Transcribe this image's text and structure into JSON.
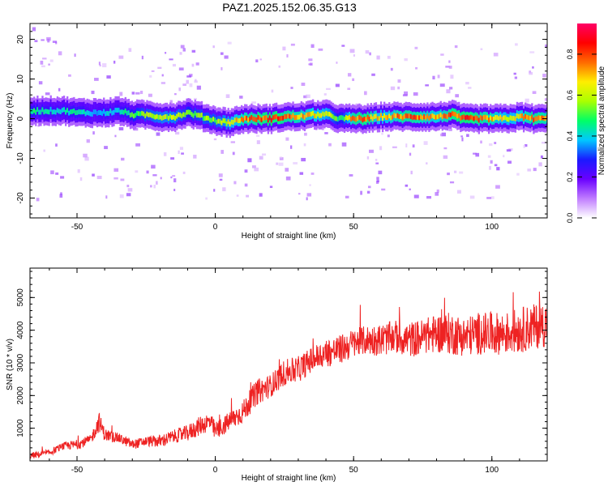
{
  "title": "PAZ1.2025.152.06.35.G13",
  "colorbar": {
    "label": "Normalized spectral amplitude",
    "ticks": [
      "0.0",
      "0.2",
      "0.4",
      "0.6",
      "0.8"
    ],
    "tick_values": [
      0.0,
      0.2,
      0.4,
      0.6,
      0.8
    ],
    "range": [
      0.0,
      0.95
    ],
    "colormap": [
      "#ffffff",
      "#c07cff",
      "#6a00ff",
      "#1a1aff",
      "#00c8ff",
      "#00ff66",
      "#aaff00",
      "#ffee00",
      "#ff6a00",
      "#ff0000",
      "#ff0066"
    ]
  },
  "chart_data": [
    {
      "type": "heatmap",
      "xlabel": "Height of straight line (km)",
      "ylabel": "Frequency (Hz)",
      "xlim": [
        -67,
        120
      ],
      "ylim": [
        -25,
        24
      ],
      "xticks": [
        -50,
        0,
        50,
        100
      ],
      "yticks": [
        -20,
        -10,
        0,
        10,
        20
      ],
      "x": [
        -65,
        -60,
        -55,
        -50,
        -45,
        -40,
        -35,
        -30,
        -25,
        -20,
        -15,
        -10,
        -5,
        0,
        5,
        10,
        15,
        20,
        25,
        30,
        35,
        40,
        45,
        50,
        55,
        60,
        65,
        70,
        75,
        80,
        85,
        90,
        95,
        100,
        105,
        110,
        115,
        120
      ],
      "ridge_frequency": [
        2,
        2,
        2,
        1.5,
        1.5,
        1.5,
        2,
        1,
        1,
        0.5,
        0.5,
        1.5,
        0.5,
        -0.5,
        -1,
        0,
        0,
        0,
        0.5,
        0.5,
        1,
        1,
        0,
        0,
        0,
        0.5,
        0.5,
        0.5,
        0.5,
        0.5,
        1,
        0,
        0,
        0,
        0,
        0.5,
        0,
        0
      ],
      "ridge_amplitude": [
        0.5,
        0.45,
        0.45,
        0.5,
        0.4,
        0.45,
        0.45,
        0.55,
        0.6,
        0.65,
        0.65,
        0.55,
        0.6,
        0.6,
        0.7,
        0.8,
        0.85,
        0.9,
        0.85,
        0.8,
        0.75,
        0.7,
        0.5,
        0.85,
        0.85,
        0.7,
        0.8,
        0.85,
        0.8,
        0.75,
        0.85,
        0.9,
        0.85,
        0.8,
        0.7,
        0.75,
        0.85,
        0.8
      ]
    },
    {
      "type": "line",
      "xlabel": "Height of straight line (km)",
      "ylabel": "SNR (10 * v/v)",
      "xlim": [
        -67,
        120
      ],
      "ylim": [
        0,
        5900
      ],
      "xticks": [
        -50,
        0,
        50,
        100
      ],
      "yticks": [
        1000,
        2000,
        3000,
        4000,
        5000
      ],
      "color": "#ee2222",
      "x": [
        -67,
        -60,
        -55,
        -50,
        -45,
        -42,
        -40,
        -35,
        -30,
        -25,
        -20,
        -15,
        -10,
        -5,
        -2,
        0,
        5,
        10,
        15,
        20,
        25,
        30,
        35,
        40,
        45,
        50,
        55,
        60,
        65,
        70,
        75,
        80,
        85,
        90,
        95,
        100,
        105,
        110,
        115,
        120
      ],
      "y": [
        150,
        250,
        450,
        500,
        650,
        1200,
        800,
        700,
        500,
        600,
        600,
        750,
        850,
        1100,
        1200,
        900,
        1200,
        1500,
        2100,
        2300,
        2700,
        2800,
        3100,
        3300,
        3400,
        3600,
        3700,
        3700,
        3800,
        3700,
        3800,
        3900,
        3900,
        3800,
        3900,
        3900,
        3900,
        4000,
        4100,
        4200
      ],
      "noise_amplitude": [
        100,
        100,
        120,
        150,
        150,
        300,
        200,
        150,
        150,
        150,
        200,
        200,
        250,
        300,
        300,
        300,
        300,
        350,
        400,
        350,
        400,
        400,
        400,
        450,
        450,
        450,
        450,
        500,
        500,
        550,
        550,
        600,
        650,
        600,
        650,
        650,
        650,
        700,
        700,
        700
      ]
    }
  ]
}
